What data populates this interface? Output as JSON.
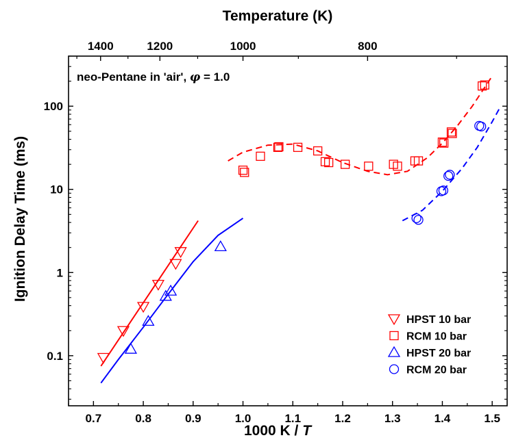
{
  "chart_data": {
    "type": "scatter",
    "title": "",
    "annotation": {
      "prefix": "neo-Pentane in 'air', ",
      "symbol": "φ",
      "suffix": " = 1.0"
    },
    "xlabel": {
      "prefix": "1000 K / ",
      "italic": "T"
    },
    "ylabel": "Ignition Delay Time (ms)",
    "top_xlabel": "Temperature (K)",
    "xlim": [
      0.65,
      1.53
    ],
    "ylim": [
      0.025,
      400
    ],
    "yscale": "log",
    "x_ticks": [
      0.7,
      0.8,
      0.9,
      1.0,
      1.1,
      1.2,
      1.3,
      1.4,
      1.5
    ],
    "x_tick_labels": [
      "0.7",
      "0.8",
      "0.9",
      "1.0",
      "1.1",
      "1.2",
      "1.3",
      "1.4",
      "1.5"
    ],
    "y_ticks": [
      0.1,
      1,
      10,
      100
    ],
    "y_tick_labels": [
      "0.1",
      "1",
      "10",
      "100"
    ],
    "top_ticks": [
      1400,
      1200,
      1000,
      800
    ],
    "top_tick_labels": [
      "1400",
      "1200",
      "1000",
      "800"
    ],
    "legend_position": "bottom-right",
    "colors": {
      "red": "#ff0000",
      "blue": "#0000ff"
    },
    "series": [
      {
        "name": "HPST 10 bar",
        "marker": "triangle-down",
        "color": "#ff0000",
        "points": [
          [
            0.72,
            0.095
          ],
          [
            0.76,
            0.2
          ],
          [
            0.8,
            0.39
          ],
          [
            0.83,
            0.72
          ],
          [
            0.865,
            1.28
          ],
          [
            0.875,
            1.78
          ]
        ]
      },
      {
        "name": "RCM  10 bar",
        "marker": "square",
        "color": "#ff0000",
        "points": [
          [
            1.0,
            17
          ],
          [
            1.003,
            16
          ],
          [
            1.035,
            25
          ],
          [
            1.07,
            32
          ],
          [
            1.072,
            32.5
          ],
          [
            1.11,
            32
          ],
          [
            1.15,
            29
          ],
          [
            1.165,
            21.5
          ],
          [
            1.172,
            21
          ],
          [
            1.205,
            20
          ],
          [
            1.252,
            19
          ],
          [
            1.302,
            20
          ],
          [
            1.31,
            19
          ],
          [
            1.345,
            22
          ],
          [
            1.352,
            22
          ],
          [
            1.4,
            37
          ],
          [
            1.403,
            36
          ],
          [
            1.418,
            49
          ],
          [
            1.42,
            47
          ],
          [
            1.48,
            175
          ],
          [
            1.485,
            180
          ]
        ]
      },
      {
        "name": "HPST  20 bar",
        "marker": "triangle-up",
        "color": "#0000ff",
        "points": [
          [
            0.775,
            0.12
          ],
          [
            0.81,
            0.26
          ],
          [
            0.845,
            0.52
          ],
          [
            0.855,
            0.6
          ],
          [
            0.955,
            2.05
          ]
        ]
      },
      {
        "name": "RCM  20 bar",
        "marker": "circle",
        "color": "#0000ff",
        "points": [
          [
            1.348,
            4.5
          ],
          [
            1.352,
            4.3
          ],
          [
            1.398,
            9.5
          ],
          [
            1.402,
            9.7
          ],
          [
            1.412,
            14.5
          ],
          [
            1.415,
            15
          ],
          [
            1.474,
            58
          ],
          [
            1.478,
            57
          ]
        ]
      }
    ],
    "model_curves": [
      {
        "series": "HPST 10 bar",
        "style": "solid",
        "color": "#ff0000",
        "points": [
          [
            0.715,
            0.075
          ],
          [
            0.91,
            4.2
          ]
        ]
      },
      {
        "series": "RCM  10 bar",
        "style": "dashed",
        "color": "#ff0000",
        "points": [
          [
            0.97,
            22
          ],
          [
            1.0,
            28
          ],
          [
            1.05,
            34
          ],
          [
            1.1,
            35
          ],
          [
            1.15,
            29
          ],
          [
            1.2,
            21
          ],
          [
            1.25,
            16.5
          ],
          [
            1.29,
            15
          ],
          [
            1.33,
            16.5
          ],
          [
            1.37,
            24
          ],
          [
            1.4,
            36
          ],
          [
            1.43,
            58
          ],
          [
            1.46,
            100
          ],
          [
            1.5,
            230
          ]
        ]
      },
      {
        "series": "HPST  20 bar",
        "style": "solid",
        "color": "#0000ff",
        "points": [
          [
            0.715,
            0.047
          ],
          [
            0.75,
            0.09
          ],
          [
            0.8,
            0.22
          ],
          [
            0.85,
            0.55
          ],
          [
            0.9,
            1.35
          ],
          [
            0.95,
            2.8
          ],
          [
            1.0,
            4.5
          ]
        ]
      },
      {
        "series": "RCM  20 bar",
        "style": "dashed",
        "color": "#0000ff",
        "points": [
          [
            1.32,
            4.2
          ],
          [
            1.36,
            5.6
          ],
          [
            1.4,
            9.5
          ],
          [
            1.44,
            18
          ],
          [
            1.47,
            32
          ],
          [
            1.5,
            65
          ],
          [
            1.515,
            95
          ]
        ]
      }
    ]
  }
}
